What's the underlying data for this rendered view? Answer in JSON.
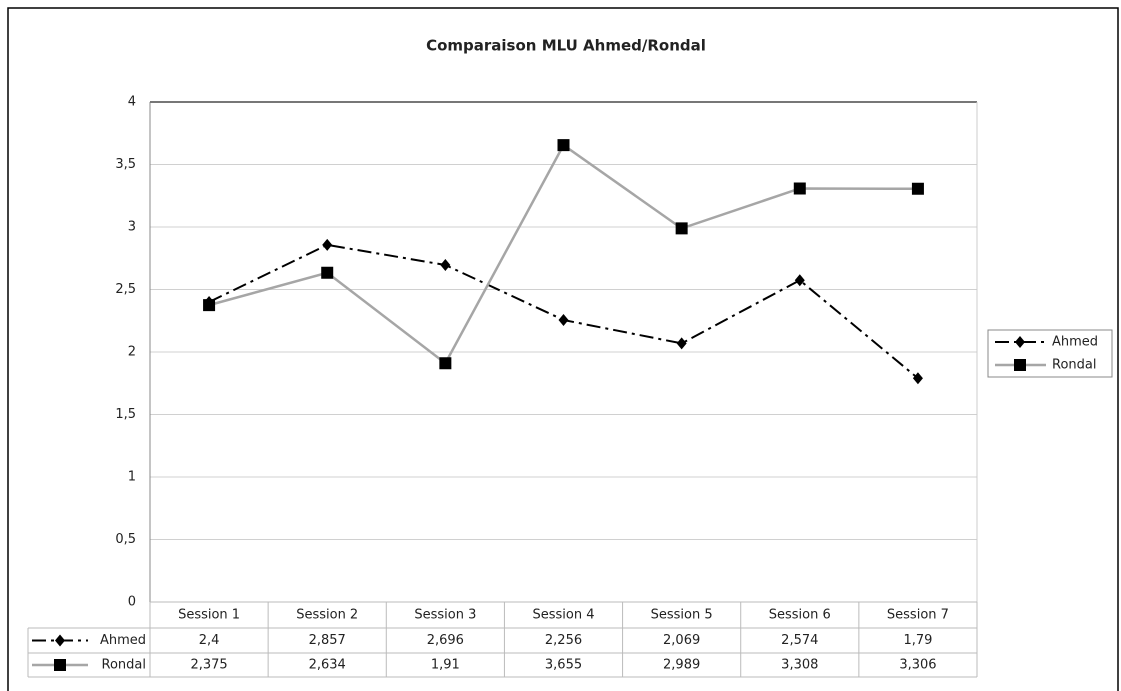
{
  "chart_data": {
    "type": "line",
    "title": "Comparaison MLU Ahmed/Rondal",
    "categories": [
      "Session 1",
      "Session 2",
      "Session 3",
      "Session 4",
      "Session 5",
      "Session 6",
      "Session 7"
    ],
    "series": [
      {
        "name": "Ahmed",
        "color": "#000000",
        "values": [
          2.4,
          2.857,
          2.696,
          2.256,
          2.069,
          2.574,
          1.79
        ],
        "value_labels": [
          "2,4",
          "2,857",
          "2,696",
          "2,256",
          "2,069",
          "2,574",
          "1,79"
        ]
      },
      {
        "name": "Rondal",
        "color": "#a6a6a6",
        "values": [
          2.375,
          2.634,
          1.91,
          3.655,
          2.989,
          3.308,
          3.306
        ],
        "value_labels": [
          "2,375",
          "2,634",
          "1,91",
          "3,655",
          "2,989",
          "3,308",
          "3,306"
        ]
      }
    ],
    "ylim": [
      0,
      4
    ],
    "yticks": [
      0,
      {
        "value": 0.5,
        "label": "0,5"
      },
      1,
      {
        "value": 1.5,
        "label": "1,5"
      },
      2,
      {
        "value": 2.5,
        "label": "2,5"
      },
      3,
      {
        "value": 3.5,
        "label": "3,5"
      },
      4
    ],
    "grid": true,
    "legend": "right"
  }
}
